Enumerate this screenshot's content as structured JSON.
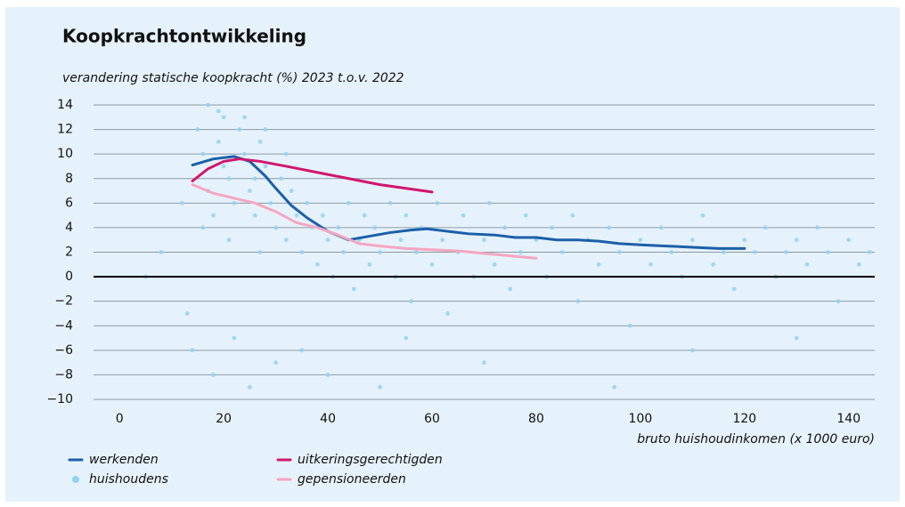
{
  "chart_data": {
    "type": "scatter",
    "title": "Koopkrachtontwikkeling",
    "subtitle": "verandering statische koopkracht (%) 2023 t.o.v. 2022",
    "x_label": "bruto huishoudinkomen (x 1000 euro)",
    "xlim": [
      -5,
      145
    ],
    "ylim": [
      -10,
      14
    ],
    "xticks": [
      0,
      20,
      40,
      60,
      80,
      100,
      120,
      140
    ],
    "yticks": [
      {
        "value": -10,
        "label": "−10"
      },
      {
        "value": -8,
        "label": "−8"
      },
      {
        "value": -6,
        "label": "−6"
      },
      {
        "value": -4,
        "label": "−4"
      },
      {
        "value": -2,
        "label": "−2"
      },
      0,
      2,
      4,
      6,
      8,
      10,
      12,
      14
    ],
    "grid": true,
    "series": [
      {
        "name": "werkenden",
        "type": "line",
        "color": "#1b5fa8",
        "x": [
          14,
          18,
          22,
          25,
          28,
          30,
          33,
          36,
          40,
          44,
          48,
          52,
          56,
          59,
          63,
          67,
          72,
          76,
          80,
          84,
          88,
          92,
          96,
          100,
          105,
          110,
          115,
          120
        ],
        "values": [
          9.1,
          9.6,
          9.8,
          9.4,
          8.2,
          7.2,
          5.8,
          4.8,
          3.7,
          3.0,
          3.3,
          3.6,
          3.8,
          3.9,
          3.7,
          3.5,
          3.4,
          3.2,
          3.2,
          3.0,
          3.0,
          2.9,
          2.7,
          2.6,
          2.5,
          2.4,
          2.3,
          2.3
        ]
      },
      {
        "name": "huishoudens",
        "type": "scatter",
        "color": "#92d2f4",
        "x": [
          15,
          16,
          17,
          18,
          16,
          19,
          20,
          21,
          22,
          23,
          24,
          25,
          26,
          27,
          28,
          29,
          30,
          31,
          32,
          33,
          34,
          35,
          36,
          37,
          38,
          39,
          40,
          41,
          42,
          43,
          44,
          45,
          46,
          47,
          48,
          49,
          50,
          52,
          53,
          54,
          55,
          56,
          57,
          58,
          60,
          61,
          62,
          63,
          65,
          66,
          68,
          70,
          71,
          72,
          74,
          75,
          77,
          78,
          80,
          82,
          83,
          85,
          87,
          88,
          90,
          92,
          94,
          96,
          98,
          100,
          102,
          104,
          106,
          108,
          110,
          112,
          114,
          116,
          118,
          120,
          122,
          124,
          126,
          128,
          130,
          132,
          134,
          136,
          138,
          140,
          142,
          144,
          13,
          14,
          18,
          22,
          25,
          30,
          35,
          40,
          50,
          55,
          70,
          95,
          110,
          130,
          8,
          5,
          12,
          17,
          19,
          24,
          28,
          32,
          26,
          20,
          21,
          27
        ],
        "values": [
          12,
          10,
          7,
          5,
          4,
          11,
          13,
          8,
          6,
          12,
          10,
          7,
          5,
          11,
          9,
          6,
          4,
          8,
          3,
          7,
          5,
          2,
          6,
          4,
          1,
          5,
          3,
          0,
          4,
          2,
          6,
          -1,
          3,
          5,
          1,
          4,
          2,
          6,
          0,
          3,
          5,
          -2,
          2,
          4,
          1,
          6,
          3,
          -3,
          2,
          5,
          0,
          3,
          6,
          1,
          4,
          -1,
          2,
          5,
          3,
          0,
          4,
          2,
          5,
          -2,
          3,
          1,
          4,
          2,
          -4,
          3,
          1,
          4,
          2,
          0,
          3,
          5,
          1,
          2,
          -1,
          3,
          2,
          4,
          0,
          2,
          3,
          1,
          4,
          2,
          -2,
          3,
          1,
          2,
          -3,
          -6,
          -8,
          -5,
          -9,
          -7,
          -6,
          -8,
          -9,
          -5,
          -7,
          -9,
          -6,
          -5,
          2,
          0,
          6,
          14,
          13.5,
          13,
          12,
          10,
          8,
          9,
          3,
          2
        ]
      },
      {
        "name": "uitkeringsgerechtigden",
        "type": "line",
        "color": "#d0166f",
        "x": [
          14,
          17,
          20,
          23,
          27,
          32,
          38,
          44,
          50,
          55,
          60
        ],
        "values": [
          7.8,
          8.8,
          9.4,
          9.6,
          9.4,
          9.0,
          8.5,
          8.0,
          7.5,
          7.2,
          6.9
        ]
      },
      {
        "name": "gepensioneerden",
        "type": "line",
        "color": "#f4a6c0",
        "x": [
          14,
          18,
          22,
          26,
          30,
          34,
          38,
          42,
          46,
          50,
          55,
          60,
          65,
          70,
          75,
          80
        ],
        "values": [
          7.5,
          6.8,
          6.4,
          6.0,
          5.3,
          4.4,
          4.0,
          3.4,
          2.7,
          2.5,
          2.3,
          2.2,
          2.1,
          1.9,
          1.7,
          1.5
        ]
      }
    ]
  }
}
